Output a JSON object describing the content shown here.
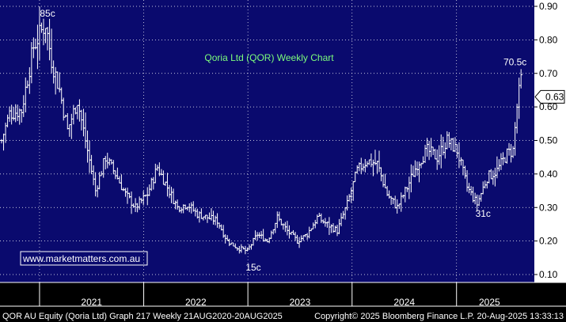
{
  "colors": {
    "plot_bg": "#0a0a6e",
    "axis_bg": "#ffffff",
    "grid": "#ffffff",
    "bars": "#ffffff",
    "title": "#7CFC7C",
    "badge_bg": "#ffffff",
    "link_text": "#ffffff",
    "footer_bg": "#000000"
  },
  "chart_data": {
    "type": "ohlc",
    "title": "Qoria Ltd (QOR) Weekly Chart",
    "ylim": [
      0.07,
      0.91
    ],
    "y_ticks": [
      "0.90",
      "0.80",
      "0.70",
      "0.60",
      "0.50",
      "0.40",
      "0.30",
      "0.20",
      "0.10"
    ],
    "y_tick_values": [
      0.9,
      0.8,
      0.7,
      0.6,
      0.5,
      0.4,
      0.3,
      0.2,
      0.1
    ],
    "x_range": [
      "2020-08-21",
      "2025-08-20"
    ],
    "years": [
      "2021",
      "2022",
      "2023",
      "2024",
      "2025"
    ],
    "year_dates": [
      "2021-01-01",
      "2022-01-01",
      "2023-01-01",
      "2024-01-01",
      "2025-01-01"
    ],
    "grid": true,
    "last_value": "0.63",
    "last_value_num": 0.63,
    "series": [
      {
        "dates": [
          "2020-08-21",
          "2020-09-18",
          "2020-10-30",
          "2020-12-11",
          "2021-01-22",
          "2021-02-12",
          "2021-03-12",
          "2021-04-09",
          "2021-05-14",
          "2021-06-18",
          "2021-07-16",
          "2021-08-20",
          "2021-09-24",
          "2021-10-29",
          "2021-12-03",
          "2022-01-14",
          "2022-02-18",
          "2022-03-25",
          "2022-04-29",
          "2022-06-03",
          "2022-07-08",
          "2022-08-12",
          "2022-09-16",
          "2022-10-21",
          "2022-11-25",
          "2022-12-30",
          "2023-02-03",
          "2023-03-10",
          "2023-04-14",
          "2023-05-19",
          "2023-06-23",
          "2023-07-28",
          "2023-09-01",
          "2023-10-06",
          "2023-11-10",
          "2023-12-15",
          "2024-01-19",
          "2024-02-23",
          "2024-03-29",
          "2024-05-03",
          "2024-06-07",
          "2024-07-12",
          "2024-08-16",
          "2024-09-20",
          "2024-10-25",
          "2024-11-29",
          "2025-01-03",
          "2025-02-07",
          "2025-03-14",
          "2025-04-18",
          "2025-05-23",
          "2025-06-27",
          "2025-07-18",
          "2025-08-01",
          "2025-08-15",
          "2025-08-20"
        ],
        "values": [
          0.5,
          0.58,
          0.59,
          0.78,
          0.85,
          0.74,
          0.65,
          0.53,
          0.62,
          0.47,
          0.35,
          0.45,
          0.4,
          0.34,
          0.3,
          0.34,
          0.42,
          0.36,
          0.3,
          0.31,
          0.28,
          0.27,
          0.26,
          0.2,
          0.18,
          0.17,
          0.22,
          0.2,
          0.27,
          0.23,
          0.2,
          0.22,
          0.27,
          0.25,
          0.23,
          0.31,
          0.41,
          0.44,
          0.43,
          0.34,
          0.3,
          0.36,
          0.43,
          0.47,
          0.45,
          0.5,
          0.47,
          0.36,
          0.31,
          0.39,
          0.41,
          0.46,
          0.47,
          0.6,
          0.68,
          0.63
        ]
      }
    ]
  },
  "annotations": [
    {
      "text": "85c",
      "date": "2021-01-29",
      "y": 0.85
    },
    {
      "text": "15c",
      "date": "2023-01-20",
      "y": 0.15
    },
    {
      "text": "31c",
      "date": "2025-04-04",
      "y": 0.31
    },
    {
      "text": "70.5c",
      "date": "2025-07-25",
      "y": 0.705
    }
  ],
  "link_badge": "www.marketmatters.com.au",
  "footer": {
    "left": "QOR AU Equity (Qoria Ltd) Graph 217  Weekly 21AUG2020-20AUG2025",
    "right": "Copyright© 2025 Bloomberg Finance L.P.     20-Aug-2025 13:33:13"
  }
}
